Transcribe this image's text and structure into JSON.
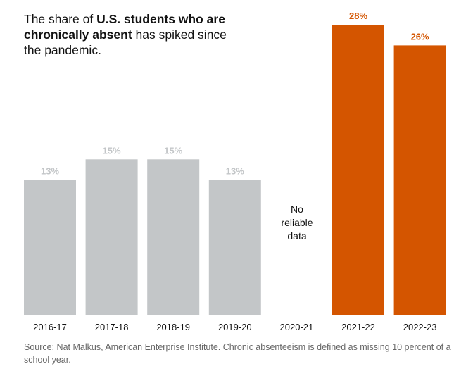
{
  "title": {
    "part1": "The share of ",
    "bold": "U.S. students who are chronically absent",
    "part2": " has spiked since the pandemic."
  },
  "no_data_label": "No\nreliable\ndata",
  "source": "Source: Nat Malkus, American Enterprise Institute. Chronic absenteeism is defined as missing 10 percent of a school year.",
  "colors": {
    "pre_pandemic": "#c3c6c8",
    "pre_pandemic_label": "#c3c6c8",
    "post_pandemic": "#d45500",
    "post_pandemic_label": "#d45500",
    "baseline": "#333333",
    "tick_text": "#121212"
  },
  "chart_data": {
    "type": "bar",
    "categories": [
      "2016-17",
      "2017-18",
      "2018-19",
      "2019-20",
      "2020-21",
      "2021-22",
      "2022-23"
    ],
    "values": [
      13,
      15,
      15,
      13,
      null,
      28,
      26
    ],
    "data_labels": [
      "13%",
      "15%",
      "15%",
      "13%",
      "",
      "28%",
      "26%"
    ],
    "highlight": [
      false,
      false,
      false,
      false,
      false,
      true,
      true
    ],
    "ylim": [
      0,
      28
    ],
    "grid": false,
    "legend": "none",
    "xlabel": "",
    "ylabel": ""
  }
}
